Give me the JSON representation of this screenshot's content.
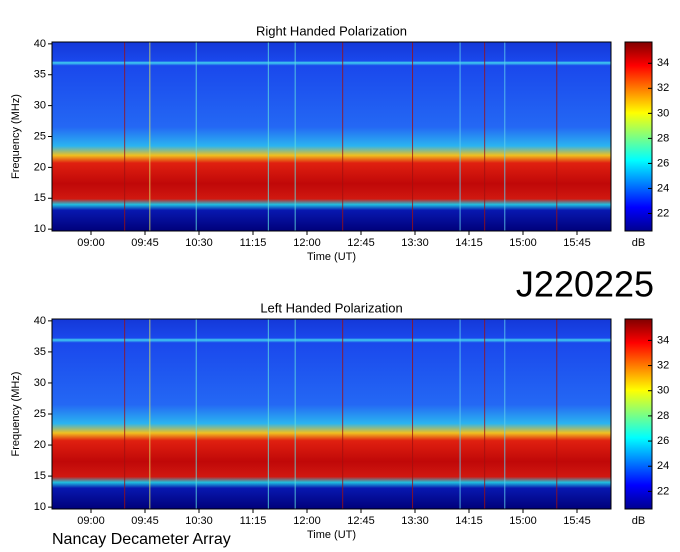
{
  "chart_data": [
    {
      "type": "heatmap",
      "title": "Right Handed Polarization",
      "xlabel": "Time (UT)",
      "ylabel": "Frequency (MHz)",
      "xticks": [
        "09:00",
        "09:45",
        "10:30",
        "11:15",
        "12:00",
        "12:45",
        "13:30",
        "14:15",
        "15:00",
        "15:45"
      ],
      "ylim": [
        9.7,
        40.3
      ],
      "yticks": [
        10,
        15,
        20,
        25,
        30,
        35,
        40
      ],
      "colorbar": {
        "label": "dB",
        "lim": [
          20.6,
          35.7
        ],
        "ticks": [
          22,
          24,
          26,
          28,
          30,
          32,
          34
        ]
      }
    },
    {
      "type": "heatmap",
      "title": "Left Handed Polarization",
      "xlabel": "Time (UT)",
      "ylabel": "Frequency (MHz)",
      "xticks": [
        "09:00",
        "09:45",
        "10:30",
        "11:15",
        "12:00",
        "12:45",
        "13:30",
        "14:15",
        "15:00",
        "15:45"
      ],
      "ylim": [
        9.7,
        40.3
      ],
      "yticks": [
        10,
        15,
        20,
        25,
        30,
        35,
        40
      ],
      "colorbar": {
        "label": "dB",
        "lim": [
          20.6,
          35.7
        ],
        "ticks": [
          22,
          24,
          26,
          28,
          30,
          32,
          34
        ]
      }
    }
  ],
  "label": "J220225",
  "footer": "Nancay Decameter Array"
}
